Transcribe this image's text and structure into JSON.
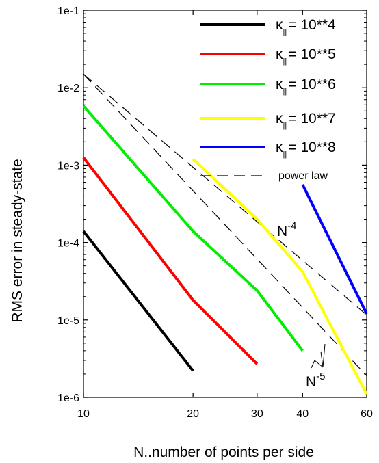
{
  "chart_data": {
    "type": "line",
    "xlabel": "N..number of points per side",
    "ylabel": "RMS error in steady-state",
    "x_scale": "log",
    "y_scale": "log",
    "xlim": [
      10,
      60
    ],
    "ylim": [
      1e-06,
      0.1
    ],
    "x_ticks": [
      {
        "value": 10,
        "label": "10"
      },
      {
        "value": 20,
        "label": "20"
      },
      {
        "value": 30,
        "label": "30"
      },
      {
        "value": 40,
        "label": "40"
      },
      {
        "value": 60,
        "label": "60"
      }
    ],
    "y_ticks": [
      {
        "value": 1e-06,
        "label": "1e-6"
      },
      {
        "value": 1e-05,
        "label": "1e-5"
      },
      {
        "value": 0.0001,
        "label": "1e-4"
      },
      {
        "value": 0.001,
        "label": "1e-3"
      },
      {
        "value": 0.01,
        "label": "1e-2"
      },
      {
        "value": 0.1,
        "label": "1e-1"
      }
    ],
    "grid": false,
    "legend_position": "top-right",
    "legend_symbol": "κ",
    "legend_subscript": "||",
    "series": [
      {
        "name": "= 10**4",
        "color": "#000000",
        "x": [
          10,
          20
        ],
        "y": [
          0.00014,
          2.2e-06
        ]
      },
      {
        "name": "= 10**5",
        "color": "#ff0000",
        "x": [
          10,
          20,
          30
        ],
        "y": [
          0.00125,
          1.8e-05,
          2.7e-06
        ]
      },
      {
        "name": "= 10**6",
        "color": "#00ee00",
        "x": [
          10,
          20,
          30,
          40
        ],
        "y": [
          0.0058,
          0.00014,
          2.4e-05,
          4e-06
        ]
      },
      {
        "name": "= 10**7",
        "color": "#ffff00",
        "x": [
          20,
          30,
          40,
          60
        ],
        "y": [
          0.0012,
          0.0002,
          4.2e-05,
          1.1e-06
        ]
      },
      {
        "name": "= 10**8",
        "color": "#0000ff",
        "x": [
          40,
          60
        ],
        "y": [
          0.00056,
          1.2e-05
        ]
      }
    ],
    "power_law": {
      "name": "power law",
      "color": "#000000",
      "lines": [
        {
          "x": [
            10,
            60
          ],
          "y": [
            0.015,
            1.16e-05
          ]
        },
        {
          "x": [
            10,
            60
          ],
          "y": [
            0.015,
            1.9e-06
          ]
        }
      ]
    },
    "annotations": [
      {
        "base": "N",
        "exponent": "-4",
        "pointer": false
      },
      {
        "base": "N",
        "exponent": "-5",
        "pointer": true
      }
    ]
  }
}
